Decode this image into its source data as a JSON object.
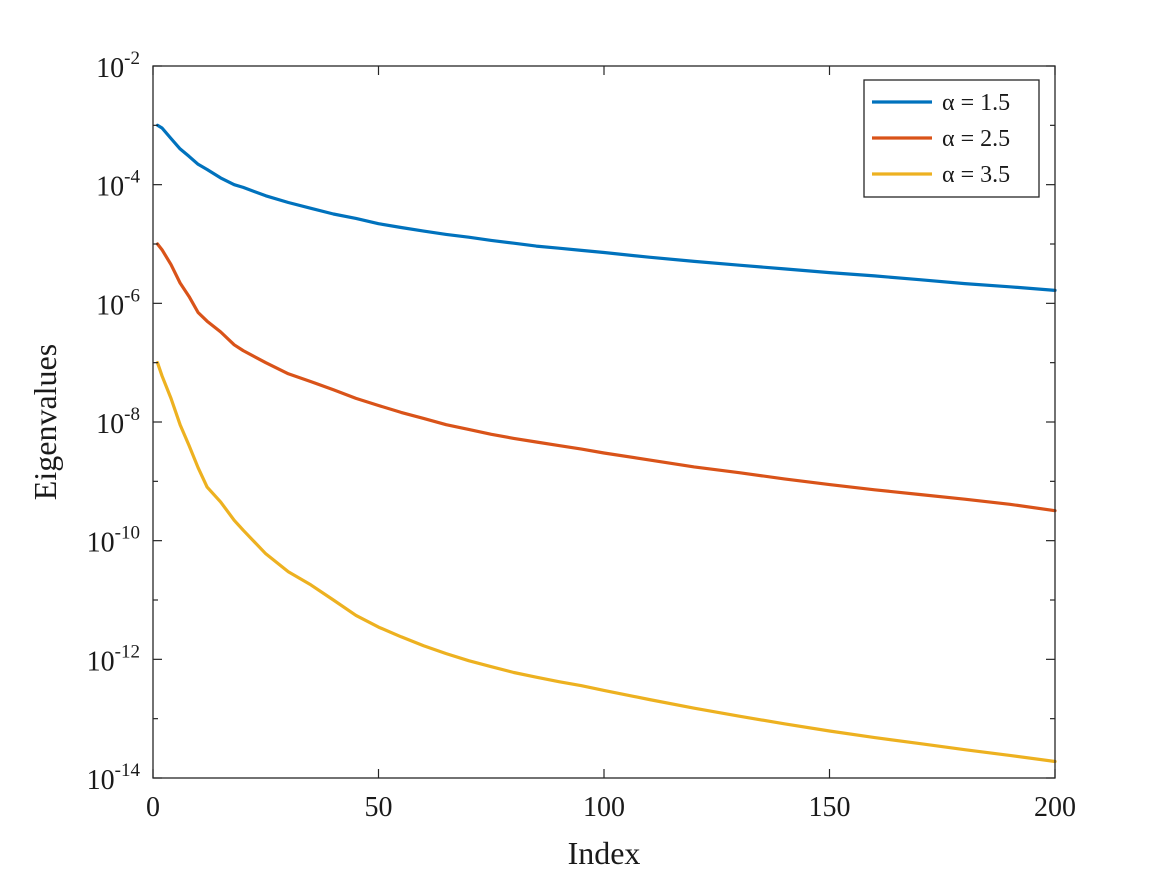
{
  "chart_data": {
    "type": "line",
    "title": "",
    "xlabel": "Index",
    "ylabel": "Eigenvalues",
    "xlim": [
      0,
      200
    ],
    "ylim": [
      1e-14,
      0.01
    ],
    "yscale": "log",
    "grid": false,
    "legend_position": "top-right",
    "x_ticks": [
      "0",
      "50",
      "100",
      "150",
      "200"
    ],
    "y_ticks": [
      {
        "base": "10",
        "exp": "-2"
      },
      {
        "base": "10",
        "exp": "-4"
      },
      {
        "base": "10",
        "exp": "-6"
      },
      {
        "base": "10",
        "exp": "-8"
      },
      {
        "base": "10",
        "exp": "-10"
      },
      {
        "base": "10",
        "exp": "-12"
      },
      {
        "base": "10",
        "exp": "-14"
      }
    ],
    "series": [
      {
        "name": "α = 1.5",
        "color": "#0072BD",
        "x": [
          1,
          2,
          4,
          6,
          8,
          10,
          12,
          15,
          18,
          20,
          25,
          30,
          35,
          40,
          45,
          50,
          55,
          60,
          65,
          70,
          75,
          80,
          85,
          90,
          95,
          100,
          110,
          120,
          130,
          140,
          150,
          160,
          170,
          180,
          190,
          200
        ],
        "y": [
          0.001,
          0.0009,
          0.0006,
          0.0004,
          0.0003,
          0.00022,
          0.00018,
          0.00013,
          0.0001,
          9e-05,
          6.5e-05,
          5e-05,
          4e-05,
          3.2e-05,
          2.7e-05,
          2.2e-05,
          1.9e-05,
          1.65e-05,
          1.45e-05,
          1.3e-05,
          1.15e-05,
          1.03e-05,
          9.2e-06,
          8.5e-06,
          7.8e-06,
          7.2e-06,
          6e-06,
          5.1e-06,
          4.4e-06,
          3.8e-06,
          3.3e-06,
          2.9e-06,
          2.5e-06,
          2.15e-06,
          1.9e-06,
          1.65e-06
        ]
      },
      {
        "name": "α = 2.5",
        "color": "#D95319",
        "x": [
          1,
          2,
          4,
          6,
          8,
          10,
          12,
          15,
          18,
          20,
          25,
          30,
          35,
          40,
          45,
          50,
          55,
          60,
          65,
          70,
          75,
          80,
          85,
          90,
          95,
          100,
          110,
          120,
          130,
          140,
          150,
          160,
          170,
          180,
          190,
          200
        ],
        "y": [
          1e-05,
          8e-06,
          4.5e-06,
          2.2e-06,
          1.3e-06,
          7e-07,
          5e-07,
          3.3e-07,
          2e-07,
          1.6e-07,
          1e-07,
          6.5e-08,
          4.8e-08,
          3.5e-08,
          2.5e-08,
          1.9e-08,
          1.45e-08,
          1.15e-08,
          9e-09,
          7.5e-09,
          6.2e-09,
          5.3e-09,
          4.6e-09,
          4e-09,
          3.5e-09,
          3e-09,
          2.3e-09,
          1.75e-09,
          1.4e-09,
          1.1e-09,
          8.8e-10,
          7.2e-10,
          6e-10,
          5e-10,
          4.1e-10,
          3.2e-10
        ]
      },
      {
        "name": "α = 3.5",
        "color": "#EDB120",
        "x": [
          1,
          2,
          4,
          6,
          8,
          10,
          12,
          15,
          18,
          20,
          25,
          30,
          35,
          40,
          45,
          50,
          55,
          60,
          65,
          70,
          75,
          80,
          85,
          90,
          95,
          100,
          110,
          120,
          130,
          140,
          150,
          160,
          170,
          180,
          190,
          200
        ],
        "y": [
          1e-07,
          6e-08,
          2.5e-08,
          9e-09,
          4e-09,
          1.7e-09,
          8e-10,
          4.5e-10,
          2.2e-10,
          1.5e-10,
          6e-11,
          3e-11,
          1.8e-11,
          1e-11,
          5.5e-12,
          3.5e-12,
          2.4e-12,
          1.7e-12,
          1.25e-12,
          9.5e-13,
          7.5e-13,
          6e-13,
          5e-13,
          4.2e-13,
          3.6e-13,
          3e-13,
          2.1e-13,
          1.5e-13,
          1.1e-13,
          8.2e-14,
          6.2e-14,
          4.8e-14,
          3.8e-14,
          3e-14,
          2.4e-14,
          1.9e-14
        ]
      }
    ]
  }
}
